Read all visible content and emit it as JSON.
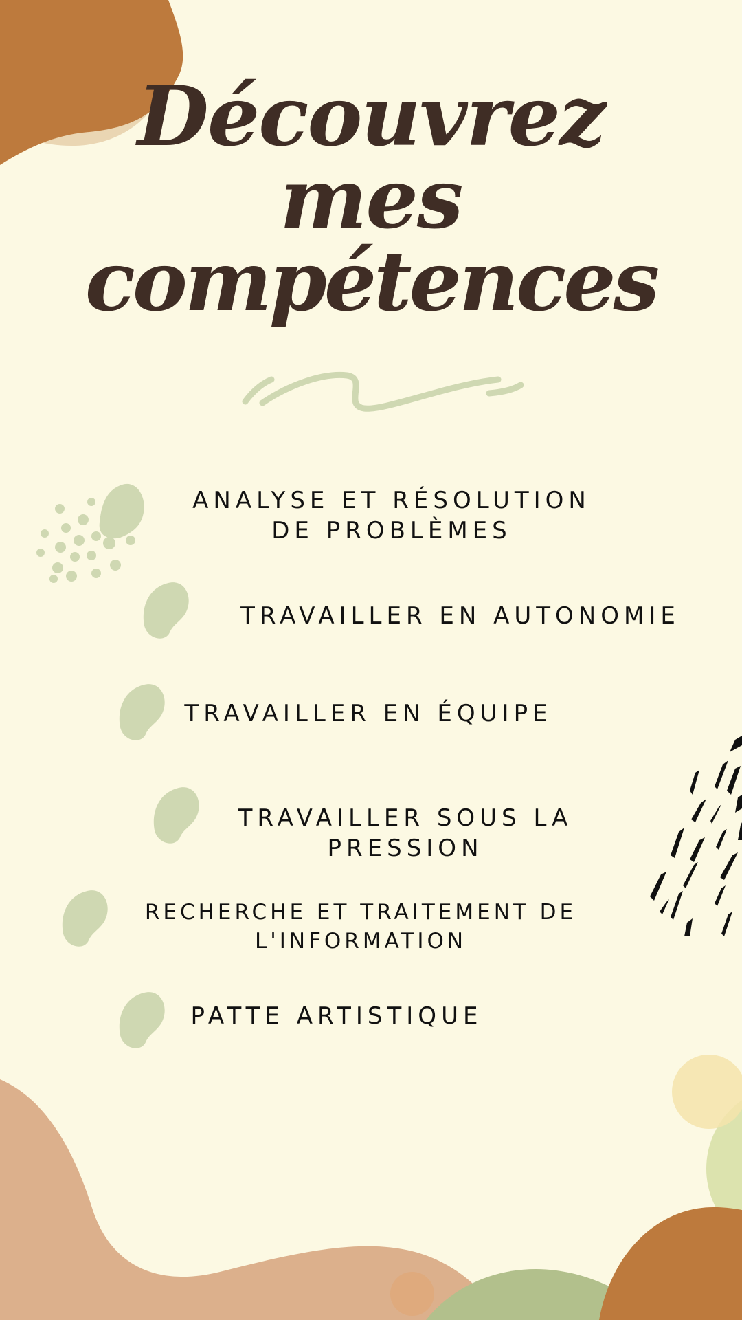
{
  "title": {
    "line1": "Découvrez",
    "line2": "mes",
    "line3": "compétences"
  },
  "skills": [
    {
      "line1": "ANALYSE ET RÉSOLUTION",
      "line2": "DE PROBLÈMES"
    },
    {
      "line1": "TRAVAILLER EN AUTONOMIE",
      "line2": ""
    },
    {
      "line1": "TRAVAILLER EN ÉQUIPE",
      "line2": ""
    },
    {
      "line1": "TRAVAILLER SOUS LA",
      "line2": "PRESSION"
    },
    {
      "line1": "RECHERCHE ET TRAITEMENT DE",
      "line2": "L'INFORMATION"
    },
    {
      "line1": "PATTE ARTISTIQUE",
      "line2": ""
    }
  ],
  "colors": {
    "background": "#fcf9e3",
    "title": "#3f2d25",
    "text": "#111111",
    "sage": "#cfd8b2",
    "caramel": "#bd7a3d",
    "peach": "#dcb08c",
    "olive": "#b2c08c"
  },
  "icons": [
    "leaf-blob-icon",
    "dot-cluster-icon",
    "swash-icon",
    "dash-pattern-icon"
  ]
}
